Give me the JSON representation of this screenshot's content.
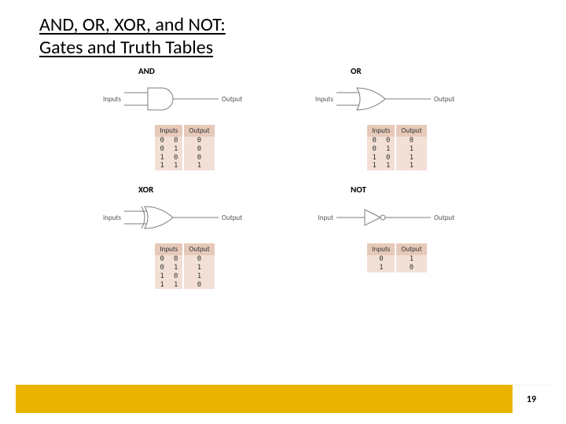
{
  "title_line1": "AND, OR, XOR, and NOT:",
  "title_line2": "Gates and Truth Tables",
  "page_number": "19",
  "colors": {
    "gold": "#e8b400",
    "table_header_bg": "#e6c9b8",
    "table_body_bg": "#f2e0d6",
    "wire": "#7d7d7d",
    "gate_fill": "#ffffff",
    "gate_stroke": "#7d7d7d",
    "text": "#555555"
  },
  "labels": {
    "inputs_plural": "Inputs",
    "input_singular": "Input",
    "output": "Output"
  },
  "gates": [
    {
      "key": "and",
      "title": "AND",
      "shape": "and",
      "input_count": 2,
      "table": {
        "columns": [
          "Inputs",
          "Output"
        ],
        "rows": [
          [
            "0",
            "0",
            "0"
          ],
          [
            "0",
            "1",
            "0"
          ],
          [
            "1",
            "0",
            "0"
          ],
          [
            "1",
            "1",
            "1"
          ]
        ]
      }
    },
    {
      "key": "or",
      "title": "OR",
      "shape": "or",
      "input_count": 2,
      "table": {
        "columns": [
          "Inputs",
          "Output"
        ],
        "rows": [
          [
            "0",
            "0",
            "0"
          ],
          [
            "0",
            "1",
            "1"
          ],
          [
            "1",
            "0",
            "1"
          ],
          [
            "1",
            "1",
            "1"
          ]
        ]
      }
    },
    {
      "key": "xor",
      "title": "XOR",
      "shape": "xor",
      "input_count": 2,
      "table": {
        "columns": [
          "Inputs",
          "Output"
        ],
        "rows": [
          [
            "0",
            "0",
            "0"
          ],
          [
            "0",
            "1",
            "1"
          ],
          [
            "1",
            "0",
            "1"
          ],
          [
            "1",
            "1",
            "0"
          ]
        ]
      }
    },
    {
      "key": "not",
      "title": "NOT",
      "shape": "not",
      "input_count": 1,
      "table": {
        "columns": [
          "Inputs",
          "Output"
        ],
        "rows": [
          [
            "0",
            "1"
          ],
          [
            "1",
            "0"
          ]
        ]
      }
    }
  ]
}
